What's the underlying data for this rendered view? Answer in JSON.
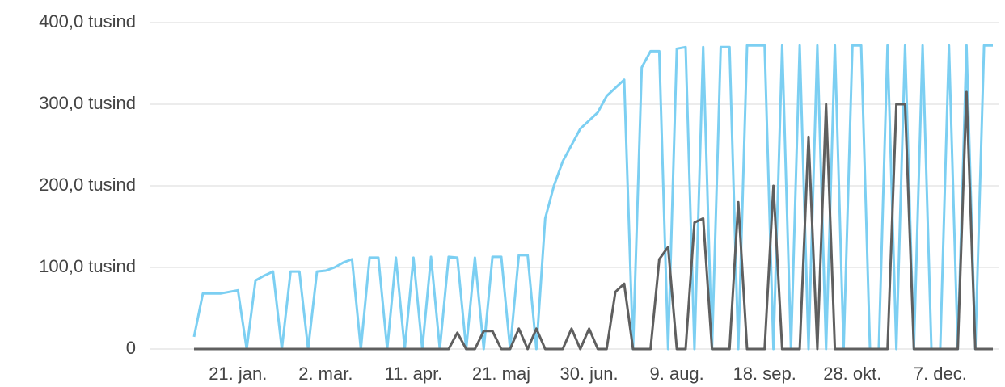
{
  "chart_data": {
    "type": "line",
    "categories": [
      null,
      null,
      null,
      null,
      null,
      "21. jan.",
      null,
      null,
      null,
      null,
      null,
      null,
      null,
      null,
      null,
      "2. mar.",
      null,
      null,
      null,
      null,
      null,
      null,
      null,
      null,
      null,
      "11. apr.",
      null,
      null,
      null,
      null,
      null,
      null,
      null,
      null,
      null,
      "21. maj",
      null,
      null,
      null,
      null,
      null,
      null,
      null,
      null,
      null,
      "30. jun.",
      null,
      null,
      null,
      null,
      null,
      null,
      null,
      null,
      null,
      "9. aug.",
      null,
      null,
      null,
      null,
      null,
      null,
      null,
      null,
      null,
      "18. sep.",
      null,
      null,
      null,
      null,
      null,
      null,
      null,
      null,
      null,
      "28. okt.",
      null,
      null,
      null,
      null,
      null,
      null,
      null,
      null,
      null,
      "7. dec.",
      null,
      null,
      null,
      null,
      null,
      null
    ],
    "series": [
      {
        "color": "#7ccff2",
        "values": [
          15000,
          68000,
          68000,
          68000,
          70000,
          72000,
          0,
          84000,
          90000,
          95000,
          0,
          95000,
          95000,
          0,
          95000,
          96000,
          100000,
          106000,
          110000,
          0,
          112000,
          112000,
          0,
          112000,
          0,
          112000,
          0,
          113000,
          0,
          113000,
          112000,
          0,
          112000,
          0,
          113000,
          113000,
          0,
          115000,
          115000,
          0,
          160000,
          200000,
          230000,
          250000,
          270000,
          280000,
          290000,
          310000,
          320000,
          330000,
          0,
          345000,
          365000,
          365000,
          0,
          368000,
          370000,
          0,
          370000,
          0,
          370000,
          370000,
          0,
          372000,
          372000,
          372000,
          0,
          372000,
          0,
          372000,
          0,
          372000,
          0,
          372000,
          0,
          372000,
          372000,
          0,
          0,
          372000,
          0,
          372000,
          0,
          372000,
          0,
          0,
          372000,
          0,
          372000,
          0,
          372000,
          372000
        ]
      },
      {
        "color": "#5f5f5f",
        "values": [
          0,
          0,
          0,
          0,
          0,
          0,
          0,
          0,
          0,
          0,
          0,
          0,
          0,
          0,
          0,
          0,
          0,
          0,
          0,
          0,
          0,
          0,
          0,
          0,
          0,
          0,
          0,
          0,
          0,
          0,
          20000,
          0,
          0,
          22000,
          22000,
          0,
          0,
          25000,
          0,
          25000,
          0,
          0,
          0,
          25000,
          0,
          25000,
          0,
          0,
          70000,
          80000,
          0,
          0,
          0,
          110000,
          125000,
          0,
          0,
          155000,
          160000,
          0,
          0,
          0,
          180000,
          0,
          0,
          0,
          200000,
          0,
          0,
          0,
          260000,
          0,
          300000,
          0,
          0,
          0,
          0,
          0,
          0,
          0,
          300000,
          300000,
          0,
          0,
          0,
          0,
          0,
          0,
          315000,
          0,
          0,
          0
        ]
      }
    ],
    "ylim": [
      0,
      400000
    ],
    "yticks": [
      {
        "value": 0,
        "label": "0"
      },
      {
        "value": 100000,
        "label": "100,0 tusind"
      },
      {
        "value": 200000,
        "label": "200,0 tusind"
      },
      {
        "value": 300000,
        "label": "300,0 tusind"
      },
      {
        "value": 400000,
        "label": "400,0 tusind"
      }
    ],
    "grid": true
  }
}
